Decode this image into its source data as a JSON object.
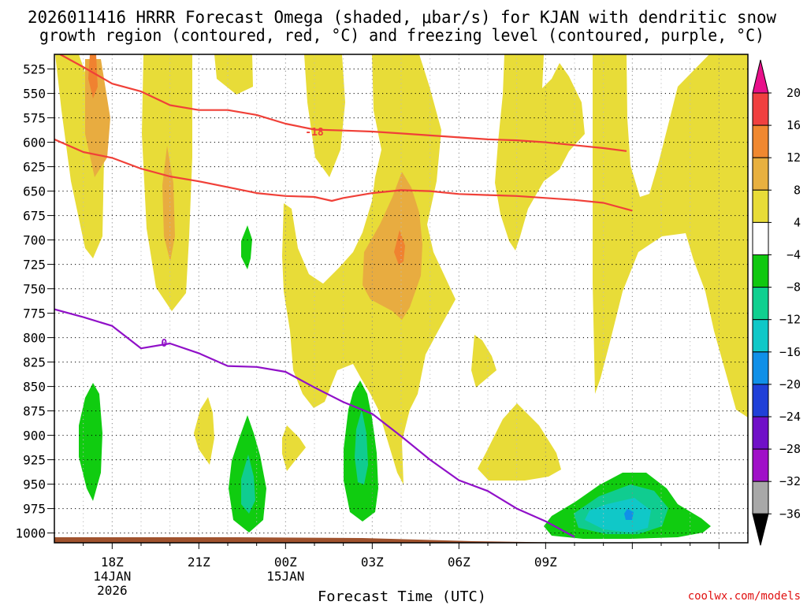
{
  "chart_data": {
    "type": "heatmap",
    "title_line1": "2026011416 HRRR Forecast Omega (shaded, μbar/s) for KJAN with dendritic snow",
    "title_line2": "growth region (contoured, red, °C) and freezing level (contoured, purple, °C)",
    "xlabel": "Forecast Time (UTC)",
    "credit": "coolwx.com/models",
    "xlim": [
      16,
      40
    ],
    "ylim": [
      1010,
      510
    ],
    "y_ticks": [
      "525",
      "550",
      "575",
      "600",
      "625",
      "650",
      "675",
      "700",
      "725",
      "750",
      "775",
      "800",
      "825",
      "850",
      "875",
      "900",
      "925",
      "950",
      "975",
      "1000"
    ],
    "x_ticks": [
      {
        "hour": 18,
        "label": "18Z",
        "sub1": "14JAN",
        "sub2": "2026"
      },
      {
        "hour": 21,
        "label": "21Z",
        "sub1": "",
        "sub2": ""
      },
      {
        "hour": 24,
        "label": "00Z",
        "sub1": "15JAN",
        "sub2": ""
      },
      {
        "hour": 27,
        "label": "03Z",
        "sub1": "",
        "sub2": ""
      },
      {
        "hour": 30,
        "label": "06Z",
        "sub1": "",
        "sub2": ""
      },
      {
        "hour": 33,
        "label": "09Z",
        "sub1": "",
        "sub2": ""
      }
    ],
    "colorbar": {
      "labels": [
        "20",
        "16",
        "12",
        "8",
        "4",
        "−4",
        "−8",
        "−12",
        "−16",
        "−20",
        "−24",
        "−28",
        "−32",
        "−36"
      ],
      "colors": [
        "#e8108a",
        "#f04040",
        "#f08830",
        "#e8b040",
        "#e8dc38",
        "#ffffff",
        "#10c810",
        "#10d090",
        "#10c8c8",
        "#1090e8",
        "#2040d8",
        "#7010c8",
        "#a010c8",
        "#a8a8a8",
        "#000000"
      ]
    },
    "shading_levels": {
      "pos1": "#e8dc38",
      "pos2": "#e8ac40",
      "pos3": "#f08230",
      "neg1": "#10cc10",
      "neg2": "#10cc90",
      "neg3": "#10c8c8",
      "neg4": "#1090e8"
    },
    "contours": [
      {
        "name": "dgz-top",
        "label": "-18",
        "color": "#f04038",
        "points": [
          [
            16.2,
            510
          ],
          [
            17,
            523
          ],
          [
            18,
            540
          ],
          [
            19,
            548
          ],
          [
            20,
            562
          ],
          [
            21,
            567
          ],
          [
            22,
            567
          ],
          [
            23,
            572
          ],
          [
            24,
            581
          ],
          [
            25,
            587
          ],
          [
            26,
            588
          ],
          [
            27,
            589
          ],
          [
            28,
            591
          ],
          [
            29,
            593
          ],
          [
            30,
            595
          ],
          [
            31,
            597
          ],
          [
            32,
            598
          ],
          [
            33,
            600
          ],
          [
            34,
            603
          ],
          [
            35,
            606
          ],
          [
            35.8,
            609
          ]
        ]
      },
      {
        "name": "dgz-bottom",
        "label": "",
        "color": "#f04038",
        "points": [
          [
            16,
            597
          ],
          [
            17,
            610
          ],
          [
            18,
            616
          ],
          [
            19,
            627
          ],
          [
            20,
            635
          ],
          [
            21,
            640
          ],
          [
            22,
            646
          ],
          [
            23,
            652
          ],
          [
            24,
            655
          ],
          [
            25,
            656
          ],
          [
            25.6,
            660
          ],
          [
            26,
            657
          ],
          [
            27,
            652
          ],
          [
            28,
            649
          ],
          [
            29,
            650
          ],
          [
            30,
            653
          ],
          [
            31,
            654
          ],
          [
            32,
            655
          ],
          [
            33,
            657
          ],
          [
            34,
            659
          ],
          [
            35,
            662
          ],
          [
            36,
            670
          ]
        ]
      },
      {
        "name": "freezing-level",
        "label": "0",
        "color": "#9010c8",
        "points": [
          [
            16,
            771
          ],
          [
            17,
            779
          ],
          [
            18,
            788
          ],
          [
            19,
            811
          ],
          [
            20,
            806
          ],
          [
            21,
            816
          ],
          [
            22,
            829
          ],
          [
            23,
            830
          ],
          [
            24,
            835
          ],
          [
            25,
            851
          ],
          [
            26,
            866
          ],
          [
            27,
            878
          ],
          [
            28,
            901
          ],
          [
            29,
            925
          ],
          [
            30,
            946
          ],
          [
            31,
            957
          ],
          [
            32,
            975
          ],
          [
            33,
            988
          ],
          [
            34,
            1004
          ]
        ]
      }
    ]
  }
}
